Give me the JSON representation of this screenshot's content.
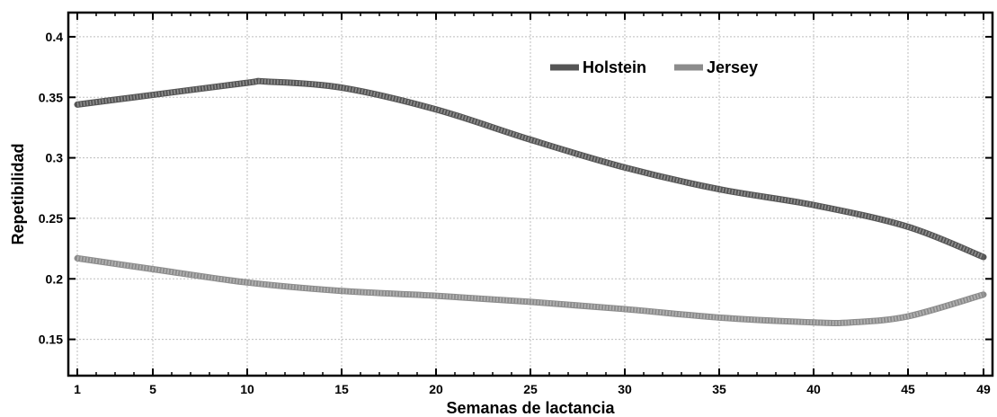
{
  "chart_data": {
    "type": "line",
    "xlabel": "Semanas de lactancia",
    "ylabel": "Repetibilidad",
    "xlim": [
      1,
      49
    ],
    "ylim": [
      0.12,
      0.42
    ],
    "xticks": [
      1,
      5,
      10,
      15,
      20,
      25,
      30,
      35,
      40,
      45,
      49
    ],
    "yticks": [
      0.15,
      0.2,
      0.25,
      0.3,
      0.35,
      0.4
    ],
    "ytick_labels": [
      "0.15",
      "0.2",
      "0.25",
      "0.3",
      "0.35",
      "0.4"
    ],
    "grid": true,
    "legend_position": "top-right",
    "series": [
      {
        "name": "Holstein",
        "color": "#555555",
        "x": [
          1,
          5,
          10,
          11,
          15,
          20,
          25,
          30,
          35,
          40,
          45,
          49
        ],
        "y": [
          0.344,
          0.352,
          0.362,
          0.363,
          0.358,
          0.34,
          0.315,
          0.292,
          0.274,
          0.261,
          0.243,
          0.218
        ]
      },
      {
        "name": "Jersey",
        "color": "#8c8c8c",
        "x": [
          1,
          5,
          10,
          15,
          20,
          25,
          30,
          35,
          40,
          42,
          45,
          49
        ],
        "y": [
          0.217,
          0.208,
          0.197,
          0.19,
          0.186,
          0.181,
          0.175,
          0.168,
          0.164,
          0.164,
          0.169,
          0.187
        ]
      }
    ]
  }
}
